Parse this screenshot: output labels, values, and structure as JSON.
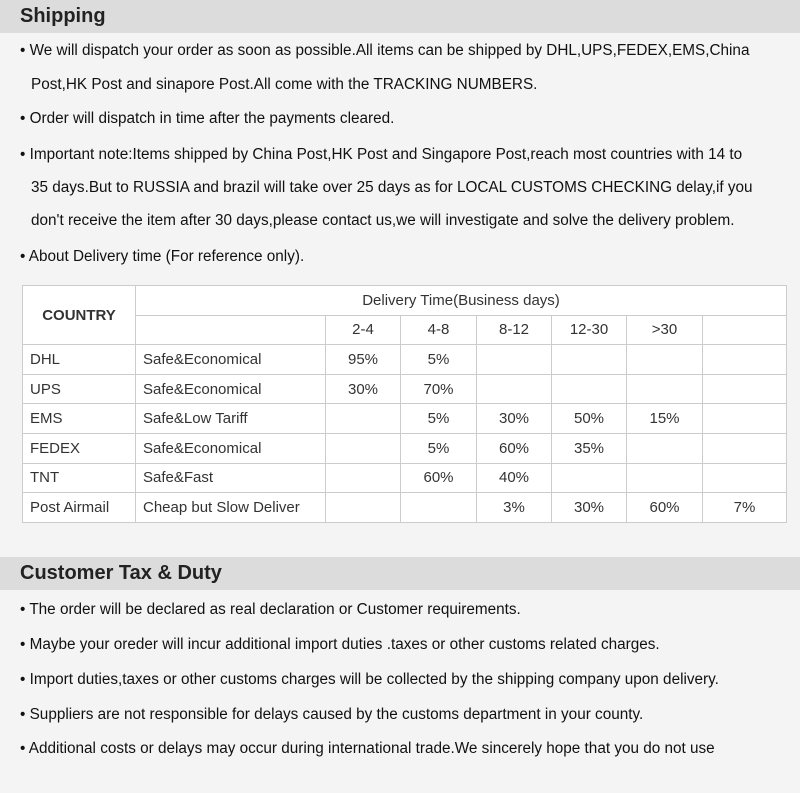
{
  "shipping": {
    "title": "Shipping",
    "lines": [
      "• We will dispatch your order as soon as possible.All items can be shipped by DHL,UPS,FEDEX,EMS,China",
      "Post,HK Post and sinapore Post.All come with the TRACKING NUMBERS.",
      "• Order will dispatch in time after the payments cleared.",
      "• Important note:Items shipped by China Post,HK Post and Singapore Post,reach most countries with 14 to",
      "35 days.But to RUSSIA and brazil will take over 25 days as for LOCAL CUSTOMS CHECKING delay,if you",
      "don't receive the item after 30 days,please contact us,we will investigate and solve the delivery problem.",
      "• About Delivery time (For reference only)."
    ]
  },
  "table": {
    "country_header": "COUNTRY",
    "delivery_header": "Delivery Time(Business days)",
    "columns": [
      "2-4",
      "4-8",
      "8-12",
      "12-30",
      ">30",
      ""
    ],
    "rows": [
      {
        "country": "DHL",
        "desc": "Safe&Economical",
        "cells": [
          "95%",
          "5%",
          "",
          "",
          "",
          ""
        ]
      },
      {
        "country": "UPS",
        "desc": "Safe&Economical",
        "cells": [
          "30%",
          "70%",
          "",
          "",
          "",
          ""
        ]
      },
      {
        "country": "EMS",
        "desc": "Safe&Low Tariff",
        "cells": [
          "",
          "5%",
          "30%",
          "50%",
          "15%",
          ""
        ]
      },
      {
        "country": "FEDEX",
        "desc": "Safe&Economical",
        "cells": [
          "",
          "5%",
          "60%",
          "35%",
          "",
          ""
        ]
      },
      {
        "country": "TNT",
        "desc": "Safe&Fast",
        "cells": [
          "",
          "60%",
          "40%",
          "",
          "",
          ""
        ]
      },
      {
        "country": "Post Airmail",
        "desc": "Cheap but Slow Deliver",
        "cells": [
          "",
          "",
          "3%",
          "30%",
          "60%",
          "7%"
        ]
      }
    ]
  },
  "tax": {
    "title": "Customer Tax & Duty",
    "lines": [
      "• The order will be declared as real declaration or Customer requirements.",
      "• Maybe your oreder will incur additional import duties .taxes or other customs related charges.",
      "• Import duties,taxes or other customs charges will be collected by the shipping company upon delivery.",
      "• Suppliers are not responsible for delays caused by the customs department in your county.",
      "• Additional costs or delays may occur during international trade.We sincerely hope that you do not use"
    ]
  }
}
